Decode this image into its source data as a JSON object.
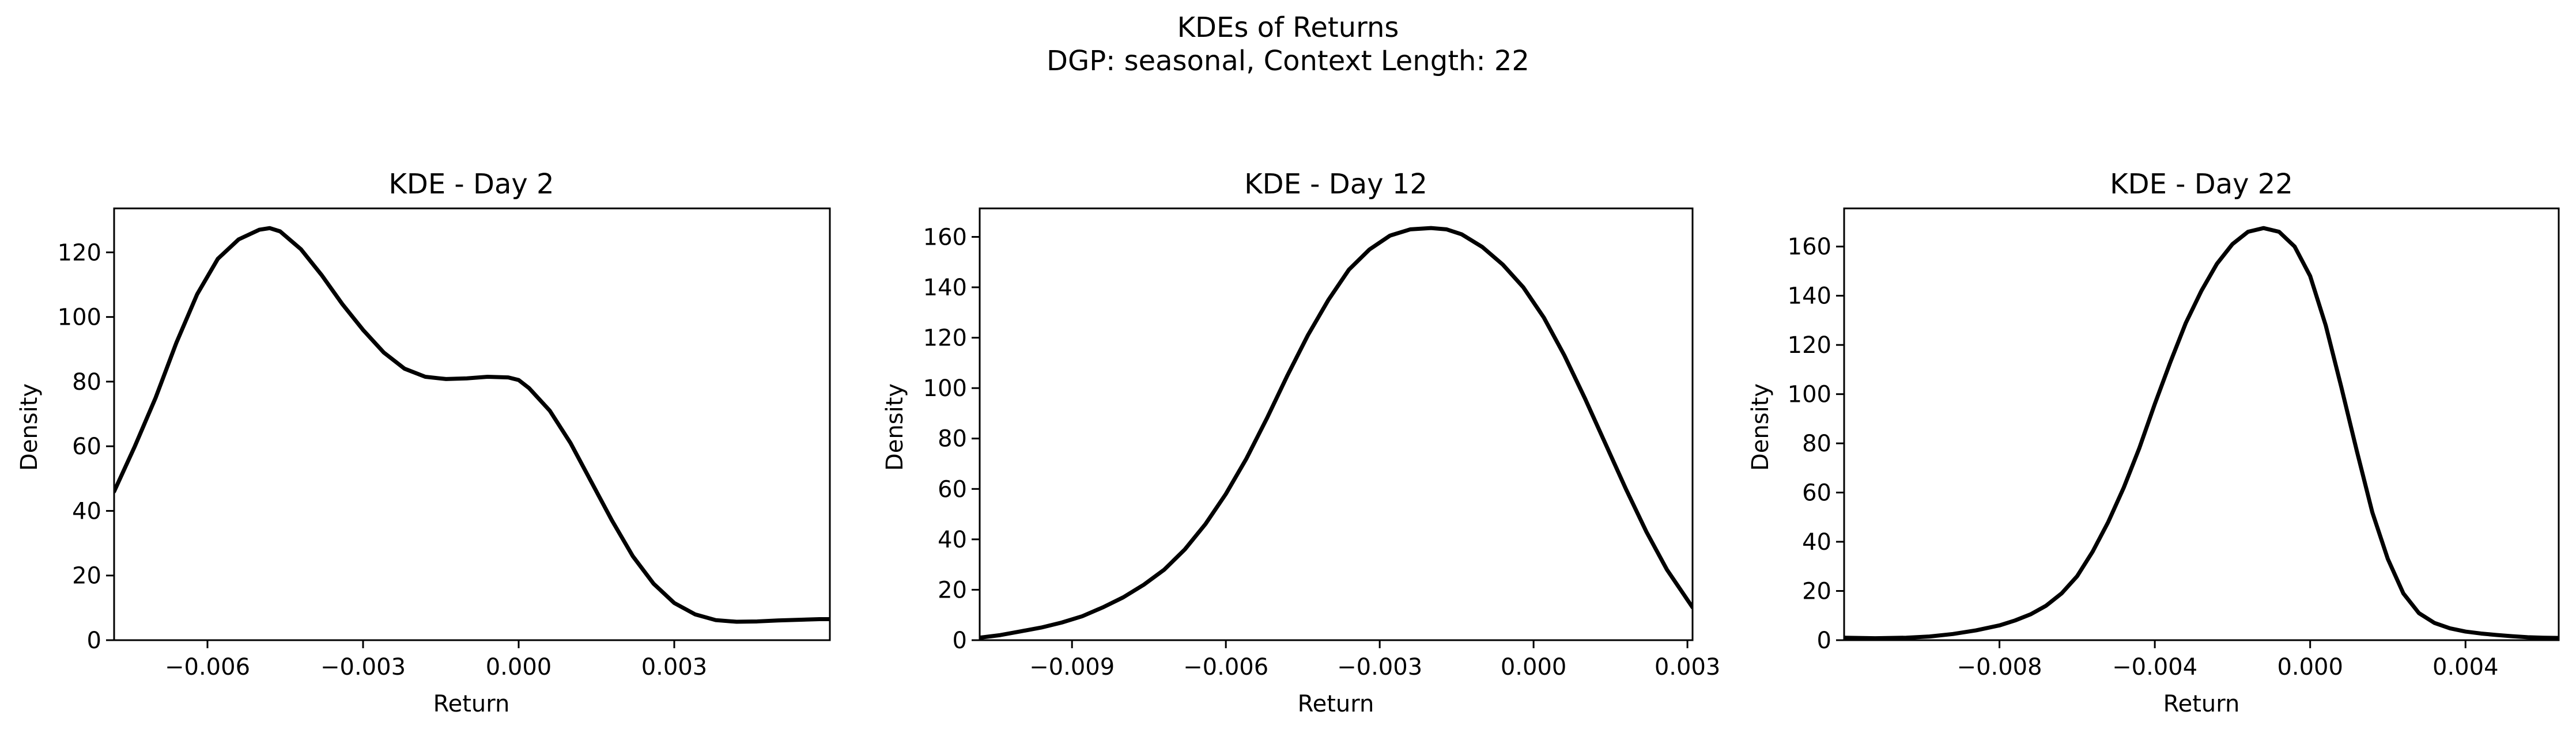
{
  "figure": {
    "suptitle_line1": "KDEs of Returns",
    "suptitle_line2": "DGP: seasonal, Context Length: 22"
  },
  "colors": {
    "line": "#000000",
    "background": "#ffffff"
  },
  "chart_data": [
    {
      "type": "line",
      "title": "KDE - Day 2",
      "xlabel": "Return",
      "ylabel": "Density",
      "xlim": [
        -0.0078,
        0.006
      ],
      "ylim": [
        0,
        133.6
      ],
      "xticks": [
        -0.006,
        -0.003,
        0.0,
        0.003
      ],
      "xtick_labels": [
        "−0.006",
        "−0.003",
        "0.000",
        "0.003"
      ],
      "yticks": [
        0,
        20,
        40,
        60,
        80,
        100,
        120
      ],
      "ytick_labels": [
        "0",
        "20",
        "40",
        "60",
        "80",
        "100",
        "120"
      ],
      "grid": false,
      "series": [
        {
          "x": [
            -0.0078,
            -0.0074,
            -0.007,
            -0.0066,
            -0.0062,
            -0.0058,
            -0.0054,
            -0.005,
            -0.0048,
            -0.0046,
            -0.0042,
            -0.0038,
            -0.0034,
            -0.003,
            -0.0026,
            -0.0022,
            -0.0018,
            -0.0014,
            -0.001,
            -0.0006,
            -0.0002,
            0.0,
            0.0002,
            0.0006,
            0.001,
            0.0014,
            0.0018,
            0.0022,
            0.0026,
            0.003,
            0.0034,
            0.0038,
            0.0042,
            0.0046,
            0.005,
            0.0054,
            0.0058,
            0.006
          ],
          "y": [
            46,
            60,
            75,
            92,
            107,
            118,
            124,
            127,
            127.5,
            126.5,
            121,
            113,
            104,
            96,
            89,
            84,
            81.5,
            80.8,
            81,
            81.5,
            81.3,
            80.5,
            78,
            71,
            61,
            49,
            37,
            26,
            17.5,
            11.5,
            8,
            6.2,
            5.7,
            5.8,
            6.1,
            6.3,
            6.5,
            6.5
          ]
        }
      ]
    },
    {
      "type": "line",
      "title": "KDE - Day 12",
      "xlabel": "Return",
      "ylabel": "Density",
      "xlim": [
        -0.0108,
        0.0031
      ],
      "ylim": [
        0,
        171.3
      ],
      "xticks": [
        -0.009,
        -0.006,
        -0.003,
        0.0,
        0.003
      ],
      "xtick_labels": [
        "−0.009",
        "−0.006",
        "−0.003",
        "0.000",
        "0.003"
      ],
      "yticks": [
        0,
        20,
        40,
        60,
        80,
        100,
        120,
        140,
        160
      ],
      "ytick_labels": [
        "0",
        "20",
        "40",
        "60",
        "80",
        "100",
        "120",
        "140",
        "160"
      ],
      "grid": false,
      "series": [
        {
          "x": [
            -0.0108,
            -0.0104,
            -0.01,
            -0.0096,
            -0.0092,
            -0.0088,
            -0.0084,
            -0.008,
            -0.0076,
            -0.0072,
            -0.0068,
            -0.0064,
            -0.006,
            -0.0056,
            -0.0052,
            -0.0048,
            -0.0044,
            -0.004,
            -0.0036,
            -0.0032,
            -0.0028,
            -0.0024,
            -0.002,
            -0.0017,
            -0.0014,
            -0.001,
            -0.0006,
            -0.0002,
            0.0002,
            0.0006,
            0.001,
            0.0014,
            0.0018,
            0.0022,
            0.0026,
            0.0031
          ],
          "y": [
            1,
            2,
            3.5,
            5,
            7,
            9.5,
            13,
            17,
            22,
            28,
            36,
            46,
            58,
            72,
            88,
            105,
            121,
            135,
            147,
            155,
            160.5,
            163,
            163.5,
            163,
            161,
            156,
            149,
            140,
            128,
            113,
            96,
            78,
            60,
            43,
            28,
            13
          ]
        }
      ]
    },
    {
      "type": "line",
      "title": "KDE - Day 22",
      "xlabel": "Return",
      "ylabel": "Density",
      "xlim": [
        -0.012,
        0.0064
      ],
      "ylim": [
        0,
        175.5
      ],
      "xticks": [
        -0.008,
        -0.004,
        0.0,
        0.004
      ],
      "xtick_labels": [
        "−0.008",
        "−0.004",
        "0.000",
        "0.004"
      ],
      "yticks": [
        0,
        20,
        40,
        60,
        80,
        100,
        120,
        140,
        160
      ],
      "ytick_labels": [
        "0",
        "20",
        "40",
        "60",
        "80",
        "100",
        "120",
        "140",
        "160"
      ],
      "grid": false,
      "series": [
        {
          "x": [
            -0.012,
            -0.0112,
            -0.0104,
            -0.0098,
            -0.0092,
            -0.0086,
            -0.008,
            -0.0076,
            -0.0072,
            -0.0068,
            -0.0064,
            -0.006,
            -0.0056,
            -0.0052,
            -0.0048,
            -0.0044,
            -0.004,
            -0.0036,
            -0.0032,
            -0.0028,
            -0.0024,
            -0.002,
            -0.0016,
            -0.0012,
            -0.0008,
            -0.0004,
            0.0,
            0.0004,
            0.0008,
            0.0012,
            0.0016,
            0.002,
            0.0024,
            0.0028,
            0.0032,
            0.0036,
            0.004,
            0.0044,
            0.0048,
            0.0052,
            0.0056,
            0.006,
            0.0064
          ],
          "y": [
            1,
            0.8,
            1,
            1.5,
            2.5,
            4,
            6,
            8,
            10.5,
            14,
            19,
            26,
            36,
            48,
            62,
            78,
            96,
            113,
            129,
            142,
            153,
            161,
            166,
            167.5,
            166,
            160,
            148,
            128,
            103,
            77,
            52,
            33,
            19,
            11,
            7,
            4.8,
            3.5,
            2.7,
            2.1,
            1.6,
            1.2,
            1.0,
            0.9
          ]
        }
      ]
    }
  ]
}
